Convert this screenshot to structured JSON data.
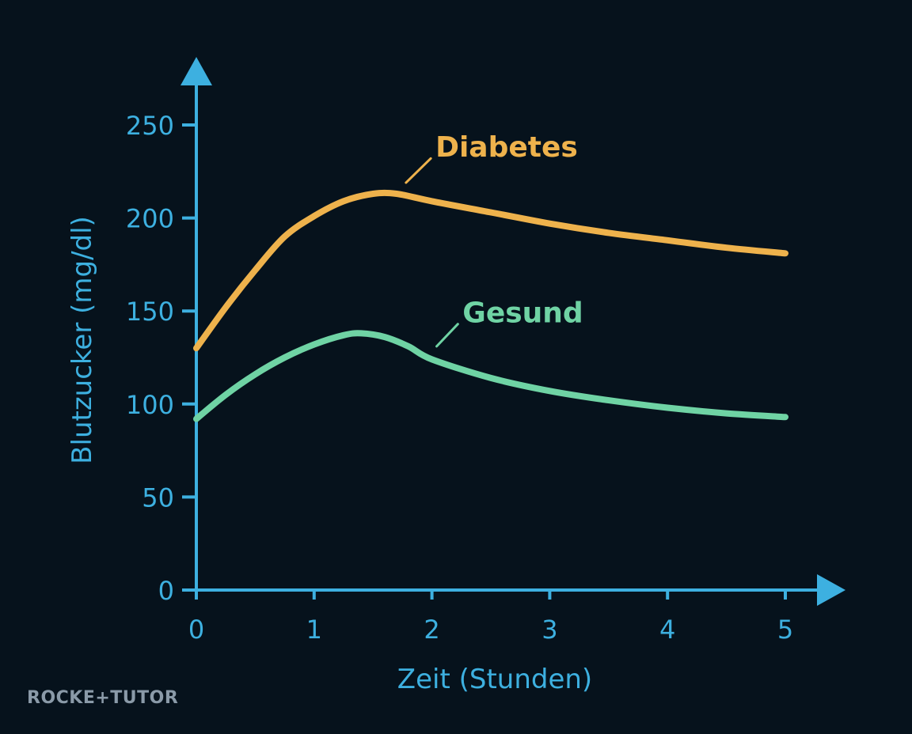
{
  "chart_data": {
    "type": "line",
    "xlabel": "Zeit (Stunden)",
    "ylabel": "Blutzucker (mg/dl)",
    "xlim": [
      0,
      5
    ],
    "ylim": [
      0,
      250
    ],
    "x_ticks": [
      "0",
      "1",
      "2",
      "3",
      "4",
      "5"
    ],
    "y_ticks": [
      "0",
      "50",
      "100",
      "150",
      "200",
      "250"
    ],
    "grid": false,
    "axis_color": "#3db0e0",
    "series": [
      {
        "name": "Diabetes",
        "color": "#eeb24c",
        "x": [
          0,
          0.25,
          0.5,
          0.75,
          1,
          1.25,
          1.5,
          1.7,
          2,
          2.5,
          3,
          3.5,
          4,
          4.5,
          5
        ],
        "y": [
          130,
          152,
          172,
          190,
          201,
          209,
          213,
          213,
          209,
          203,
          197,
          192,
          188,
          184,
          181
        ]
      },
      {
        "name": "Gesund",
        "color": "#6fd3a4",
        "x": [
          0,
          0.25,
          0.5,
          0.75,
          1,
          1.25,
          1.4,
          1.6,
          1.8,
          2,
          2.5,
          3,
          3.5,
          4,
          4.5,
          5
        ],
        "y": [
          92,
          105,
          116,
          125,
          132,
          137,
          138,
          136,
          131,
          124,
          114,
          107,
          102,
          98,
          95,
          93
        ]
      }
    ]
  },
  "watermark": "ROCKE+TUTOR"
}
